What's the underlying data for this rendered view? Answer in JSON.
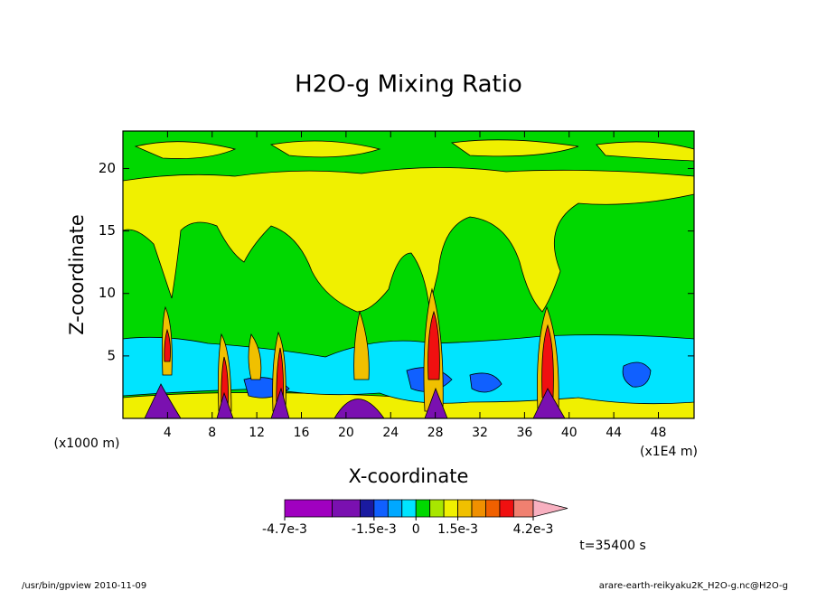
{
  "chart_data": {
    "type": "contour",
    "title": "H2O-g Mixing Ratio",
    "x_label": "X-coordinate",
    "y_label": "Z-coordinate",
    "x_unit_left": "(x1000 m)",
    "x_unit_right": "(x1E4 m)",
    "xlim": [
      0,
      51.2
    ],
    "xticks": [
      4,
      8,
      12,
      16,
      20,
      24,
      28,
      32,
      36,
      40,
      44,
      48
    ],
    "ylim": [
      0,
      23
    ],
    "yticks": [
      5,
      10,
      15,
      20
    ],
    "colorbar": {
      "lim": [
        -0.0047,
        0.0042
      ],
      "bounds": [
        -0.0047,
        -0.003,
        -0.002,
        -0.0015,
        -0.001,
        -0.0005,
        0,
        0.0005,
        0.001,
        0.0015,
        0.002,
        0.0025,
        0.003,
        0.0035,
        0.0042
      ],
      "colors": [
        "#a000c0",
        "#7a10b0",
        "#1a1aa0",
        "#1060ff",
        "#00a8ff",
        "#00e4ff",
        "#00d800",
        "#a8e600",
        "#f0f000",
        "#f0c000",
        "#f09000",
        "#f06000",
        "#f01010",
        "#f08070"
      ],
      "extend_color": "#f8b0c0",
      "ticks": [
        {
          "value": -0.0047,
          "label": "-4.7e-3"
        },
        {
          "value": -0.0015,
          "label": "-1.5e-3"
        },
        0,
        {
          "value": 0.0015,
          "label": "1.5e-3"
        },
        {
          "value": 0.0042,
          "label": "4.2e-3"
        }
      ]
    },
    "time_label": "t=35400 s",
    "footer_left": "/usr/bin/gpview  2010-11-09",
    "footer_right": "arare-earth-reikyaku2K_H2O-g.nc@H2O-g"
  }
}
